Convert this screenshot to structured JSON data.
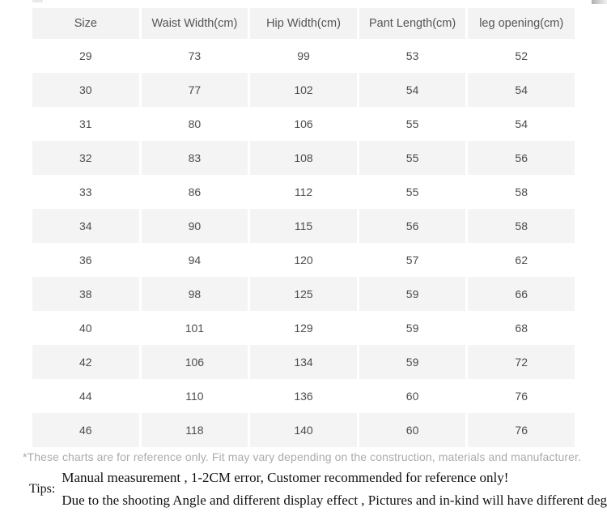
{
  "table": {
    "columns": [
      "Size",
      "Waist Width(cm)",
      "Hip Width(cm)",
      "Pant Length(cm)",
      "leg opening(cm)"
    ],
    "rows": [
      [
        "29",
        "73",
        "99",
        "53",
        "52"
      ],
      [
        "30",
        "77",
        "102",
        "54",
        "54"
      ],
      [
        "31",
        "80",
        "106",
        "55",
        "54"
      ],
      [
        "32",
        "83",
        "108",
        "55",
        "56"
      ],
      [
        "33",
        "86",
        "112",
        "55",
        "58"
      ],
      [
        "34",
        "90",
        "115",
        "56",
        "58"
      ],
      [
        "36",
        "94",
        "120",
        "57",
        "62"
      ],
      [
        "38",
        "98",
        "125",
        "59",
        "66"
      ],
      [
        "40",
        "101",
        "129",
        "59",
        "68"
      ],
      [
        "42",
        "106",
        "134",
        "59",
        "72"
      ],
      [
        "44",
        "110",
        "136",
        "60",
        "76"
      ],
      [
        "46",
        "118",
        "140",
        "60",
        "76"
      ]
    ]
  },
  "footer": {
    "disclaimer": "*These charts are for reference only. Fit may vary depending on the construction, materials and manufacturer.",
    "tips_label": "Tips:",
    "tips": [
      "Manual measurement , 1-2CM error, Customer recommended for reference only!",
      "Due to the shooting Angle and different display effect , Pictures and in-kind will have different degrees off color"
    ]
  },
  "colors": {
    "row_alt": "#f4f4f4",
    "header_bg": "#f3f3f3",
    "cell_text": "#4d4d4d",
    "disclaimer_text": "#ababab",
    "tips_text": "#111111"
  }
}
